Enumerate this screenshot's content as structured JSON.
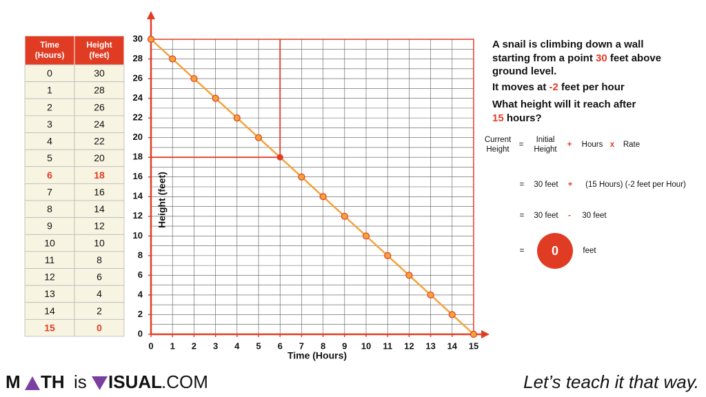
{
  "table": {
    "headers": [
      [
        "Time",
        "(Hours)"
      ],
      [
        "Height",
        "(feet)"
      ]
    ],
    "rows": [
      [
        0,
        30
      ],
      [
        1,
        28
      ],
      [
        2,
        26
      ],
      [
        3,
        24
      ],
      [
        4,
        22
      ],
      [
        5,
        20
      ],
      [
        6,
        18
      ],
      [
        7,
        16
      ],
      [
        8,
        14
      ],
      [
        9,
        12
      ],
      [
        10,
        10
      ],
      [
        11,
        8
      ],
      [
        12,
        6
      ],
      [
        13,
        4
      ],
      [
        14,
        2
      ],
      [
        15,
        0
      ]
    ],
    "highlight_rows": [
      6,
      15
    ]
  },
  "chart_data": {
    "type": "line",
    "x": [
      0,
      1,
      2,
      3,
      4,
      5,
      6,
      7,
      8,
      9,
      10,
      11,
      12,
      13,
      14,
      15
    ],
    "values": [
      30,
      28,
      26,
      24,
      22,
      20,
      18,
      16,
      14,
      12,
      10,
      8,
      6,
      4,
      2,
      0
    ],
    "color": "#f5a23a",
    "xlim": [
      0,
      15
    ],
    "ylim": [
      0,
      30
    ],
    "xticks": [
      0,
      1,
      2,
      3,
      4,
      5,
      6,
      7,
      8,
      9,
      10,
      11,
      12,
      13,
      14,
      15
    ],
    "yticks": [
      0,
      2,
      4,
      6,
      8,
      10,
      12,
      14,
      16,
      18,
      20,
      22,
      24,
      26,
      28,
      30
    ],
    "grid": true,
    "grid_step": 1,
    "x_label": "Time (Hours)",
    "y_label": "Height (feet)",
    "highlight_index": 6
  },
  "problem": {
    "lines": [
      [
        "A snail is climbing down a wall"
      ],
      [
        "starting from a point ",
        "30",
        " feet above"
      ],
      [
        "ground level."
      ],
      [
        "It moves at ",
        "-2",
        " feet per hour"
      ],
      [
        "What height will it reach after"
      ],
      [
        "15",
        " hours?"
      ]
    ]
  },
  "equation": {
    "row1": {
      "lhs": [
        "Current",
        "Height"
      ],
      "eq": "=",
      "initial": [
        "Initial",
        "Height"
      ],
      "plus": "+",
      "hours": "Hours",
      "times": "x",
      "rate": "Rate"
    },
    "row2": {
      "eq": "=",
      "a": "30 feet",
      "op": "+",
      "b": "(15 Hours) (-2 feet per Hour)"
    },
    "row3": {
      "eq": "=",
      "a": "30 feet",
      "op": "-",
      "b": "30 feet"
    },
    "row4": {
      "eq": "=",
      "answer": "0",
      "unit": "feet"
    }
  },
  "footer": {
    "logo": [
      "M",
      "TH",
      "is",
      "ISUAL",
      ".COM"
    ],
    "tagline": "Let’s teach it that way."
  }
}
